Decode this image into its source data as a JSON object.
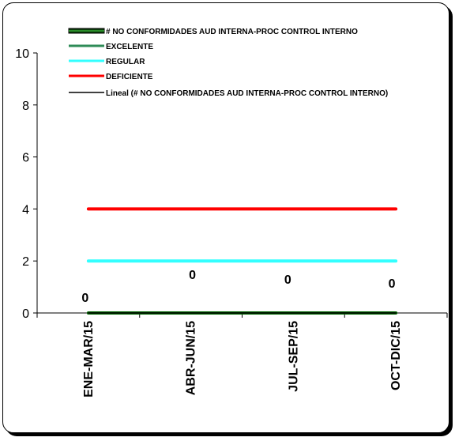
{
  "chart_data": {
    "type": "line",
    "title": "",
    "xlabel": "",
    "ylabel": "",
    "categories": [
      "ENE-MAR/15",
      "ABR-JUN/15",
      "JUL-SEP/15",
      "OCT-DIC/15"
    ],
    "ylim": [
      0,
      10
    ],
    "yticks": [
      "0",
      "2",
      "4",
      "6",
      "8",
      "10"
    ],
    "grid": false,
    "legend_position": "top",
    "series": [
      {
        "name": "# NO CONFORMIDADES AUD INTERNA-PROC CONTROL INTERNO",
        "values": [
          0,
          0,
          0,
          0
        ],
        "color": "#006400",
        "data_labels": [
          "0",
          "0",
          "0",
          "0"
        ]
      },
      {
        "name": "EXCELENTE",
        "values": [
          0,
          0,
          0,
          0
        ],
        "color": "#2e8b57"
      },
      {
        "name": "REGULAR",
        "values": [
          2,
          2,
          2,
          2
        ],
        "color": "#33ffff"
      },
      {
        "name": "DEFICIENTE",
        "values": [
          4,
          4,
          4,
          4
        ],
        "color": "#ff0000"
      },
      {
        "name": "Lineal (# NO CONFORMIDADES AUD INTERNA-PROC CONTROL INTERNO)",
        "values": [
          0,
          0,
          0,
          0
        ],
        "color": "#000000"
      }
    ]
  }
}
